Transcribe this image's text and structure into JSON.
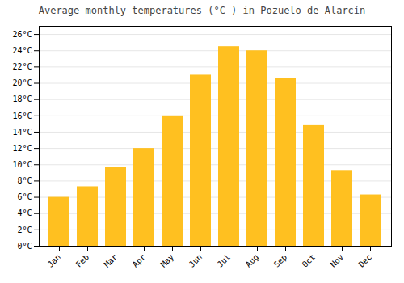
{
  "chart_data": {
    "type": "bar",
    "title": "Average monthly temperatures (°C ) in Pozuelo de Alarcín",
    "categories": [
      "Jan",
      "Feb",
      "Mar",
      "Apr",
      "May",
      "Jun",
      "Jul",
      "Aug",
      "Sep",
      "Oct",
      "Nov",
      "Dec"
    ],
    "values": [
      6.0,
      7.3,
      9.7,
      12.0,
      16.0,
      21.0,
      24.5,
      24.0,
      20.6,
      14.9,
      9.3,
      6.3
    ],
    "color": "#FFC020",
    "ylim": [
      0,
      27
    ],
    "yticks": [
      {
        "value": 0,
        "label": "0°C"
      },
      {
        "value": 2,
        "label": "2°C"
      },
      {
        "value": 4,
        "label": "4°C"
      },
      {
        "value": 6,
        "label": "6°C"
      },
      {
        "value": 8,
        "label": "8°C"
      },
      {
        "value": 10,
        "label": "10°C"
      },
      {
        "value": 12,
        "label": "12°C"
      },
      {
        "value": 14,
        "label": "14°C"
      },
      {
        "value": 16,
        "label": "16°C"
      },
      {
        "value": 18,
        "label": "18°C"
      },
      {
        "value": 20,
        "label": "20°C"
      },
      {
        "value": 22,
        "label": "22°C"
      },
      {
        "value": 24,
        "label": "24°C"
      },
      {
        "value": 26,
        "label": "26°C"
      }
    ],
    "grid": true
  }
}
